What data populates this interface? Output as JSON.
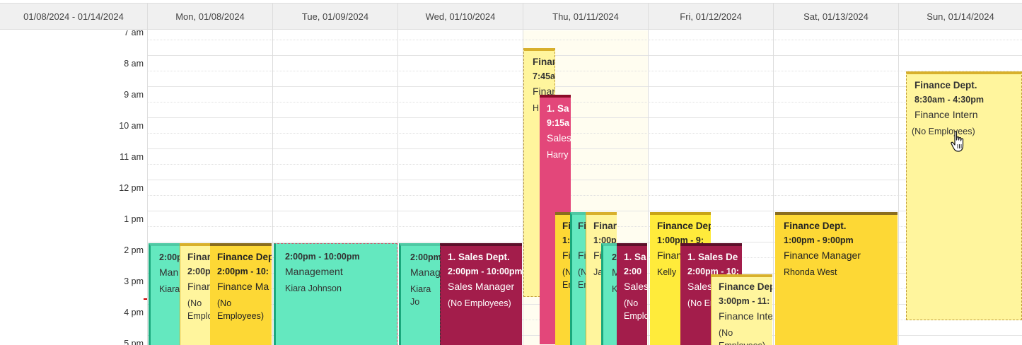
{
  "header": {
    "range": "01/08/2024 - 01/14/2024",
    "days": [
      "Mon, 01/08/2024",
      "Tue, 01/09/2024",
      "Wed, 01/10/2024",
      "Thu, 01/11/2024",
      "Fri, 01/12/2024",
      "Sat, 01/13/2024",
      "Sun, 01/14/2024"
    ]
  },
  "hours": [
    "7 am",
    "8 am",
    "9 am",
    "10 am",
    "11 am",
    "12 pm",
    "1 pm",
    "2 pm",
    "3 pm",
    "4 pm",
    "5 pm"
  ],
  "events": {
    "mon1": {
      "time": "2:00pm",
      "position": "Man",
      "employee": "Kiara"
    },
    "mon2": {
      "title": "Finan",
      "time": "2:00p",
      "position": "Finar",
      "employee": "(No Emplo"
    },
    "mon3": {
      "title": "Finance Dep",
      "time": "2:00pm - 10:",
      "position": "Finance Ma",
      "employee": "(No Employees)"
    },
    "tue1": {
      "time": "2:00pm - 10:00pm",
      "position": "Management",
      "employee": "Kiara Johnson"
    },
    "wed1": {
      "time": "2:00pm",
      "position": "Manag",
      "employee": "Kiara Jo"
    },
    "wed2": {
      "title": "1. Sales Dept.",
      "time": "2:00pm - 10:00pm",
      "position": "Sales Manager",
      "employee": "(No Employees)"
    },
    "thu1": {
      "title": "Finar",
      "time": "7:45a",
      "position": "Finar",
      "employee": "H"
    },
    "thu2": {
      "title": "1. Sa",
      "time": "9:15a",
      "position": "Sales",
      "employee": "Harry"
    },
    "thu3": {
      "title": "Fi",
      "time": "1:",
      "position": "Fi",
      "employee": "(N Em"
    },
    "thu4": {
      "title": "Fi",
      "time": "",
      "position": "Fi",
      "employee": "(N Em"
    },
    "thu5": {
      "title": "Finar",
      "time": "1:00p",
      "position": "Fir",
      "employee": "Ja"
    },
    "thu6": {
      "title": "",
      "time": "2",
      "position": "M",
      "employee": "K"
    },
    "thu7": {
      "title": "1. Sa",
      "time": "2:00",
      "position": "Sales",
      "employee": "(No Emplo"
    },
    "fri1": {
      "title": "Finance Dep",
      "time": "1:00pm - 9:",
      "position": "Finan",
      "employee": "Kelly"
    },
    "fri2": {
      "title": "1. Sales De",
      "time": "2:00pm - 10:",
      "position": "Sales",
      "employee": "(No Emplo"
    },
    "fri3": {
      "title": "Finance Dep",
      "time": "3:00pm - 11:",
      "position": "Finance Inte",
      "employee": "(No Employees)"
    },
    "sat1": {
      "title": "Finance Dept.",
      "time": "1:00pm - 9:00pm",
      "position": "Finance Manager",
      "employee": "Rhonda West"
    },
    "sun1": {
      "title": "Finance Dept.",
      "time": "8:30am - 4:30pm",
      "position": "Finance Intern",
      "employee": "(No Employees)"
    }
  }
}
